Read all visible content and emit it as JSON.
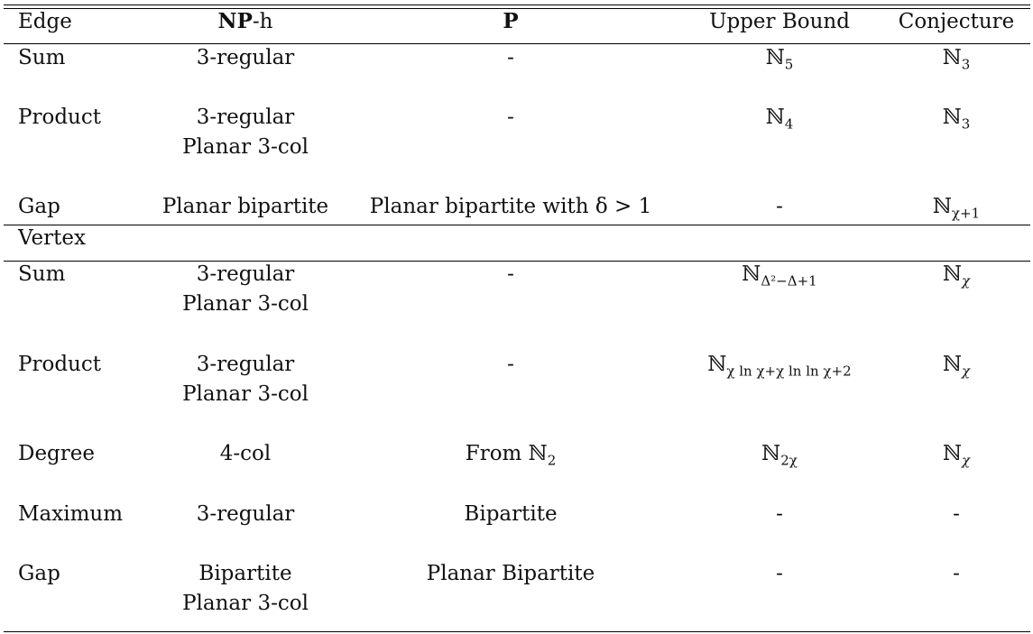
{
  "columns": {
    "c0": "Edge",
    "c1_bold": "NP",
    "c1_rest": "-h",
    "c2": "P",
    "c3": "Upper Bound",
    "c4": "Conjecture"
  },
  "edge_rows": [
    {
      "label": "Sum",
      "nph": [
        "3-regular"
      ],
      "p": "-",
      "upper": "ℕ",
      "upper_sub": "5",
      "conj": "ℕ",
      "conj_sub": "3"
    },
    {
      "label": "Product",
      "nph": [
        "3-regular",
        "Planar 3-col"
      ],
      "p": "-",
      "upper": "ℕ",
      "upper_sub": "4",
      "conj": "ℕ",
      "conj_sub": "3"
    },
    {
      "label": "Gap",
      "nph": [
        "Planar bipartite"
      ],
      "p": "Planar bipartite with δ > 1",
      "upper": "-",
      "upper_sub": "",
      "conj": "ℕ",
      "conj_sub": "χ+1"
    }
  ],
  "vertex_section_label": "Vertex",
  "vertex_rows": [
    {
      "label": "Sum",
      "nph": [
        "3-regular",
        "Planar 3-col"
      ],
      "p": "-",
      "upper": "ℕ",
      "upper_sub": "Δ²−Δ+1",
      "conj": "ℕ",
      "conj_sub": "χ"
    },
    {
      "label": "Product",
      "nph": [
        "3-regular",
        "Planar 3-col"
      ],
      "p": "-",
      "upper": "ℕ",
      "upper_sub": "χ ln χ+χ ln ln χ+2",
      "conj": "ℕ",
      "conj_sub": "χ"
    },
    {
      "label": "Degree",
      "nph": [
        "4-col"
      ],
      "p": "From ℕ",
      "p_sub": "2",
      "upper": "ℕ",
      "upper_sub": "2χ",
      "conj": "ℕ",
      "conj_sub": "χ"
    },
    {
      "label": "Maximum",
      "nph": [
        "3-regular"
      ],
      "p": "Bipartite",
      "upper": "-",
      "upper_sub": "",
      "conj": "-",
      "conj_sub": ""
    },
    {
      "label": "Gap",
      "nph": [
        "Bipartite",
        "Planar 3-col"
      ],
      "p": "Planar Bipartite",
      "upper": "-",
      "upper_sub": "",
      "conj": "-",
      "conj_sub": ""
    }
  ]
}
